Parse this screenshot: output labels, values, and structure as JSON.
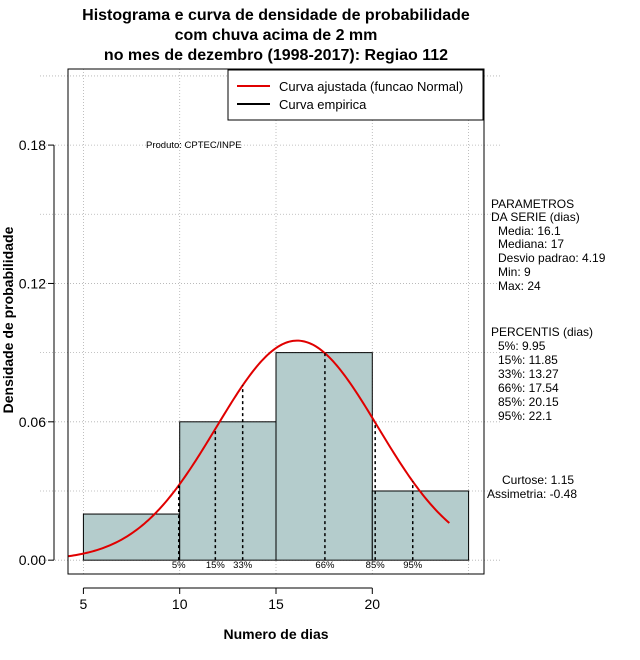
{
  "chart_data": {
    "type": "histogram",
    "title": [
      "Histograma e curva de densidade de probabilidade",
      "com chuva acima de 2 mm",
      "no mes de dezembro (1998-2017): Regiao 112"
    ],
    "xlabel": "Numero de dias",
    "ylabel": "Densidade de probabilidade",
    "xlim": [
      4.2,
      25.8
    ],
    "ylim": [
      -0.006,
      0.213
    ],
    "x_ticks": [
      5,
      10,
      15,
      20
    ],
    "y_ticks": [
      0.0,
      0.06,
      0.12,
      0.18
    ],
    "y_tick_labels": [
      "0.00",
      "0.06",
      "0.12",
      "0.18"
    ],
    "bins": [
      {
        "start": 5,
        "end": 10,
        "density": 0.02
      },
      {
        "start": 10,
        "end": 15,
        "density": 0.06
      },
      {
        "start": 15,
        "end": 20,
        "density": 0.09
      },
      {
        "start": 20,
        "end": 25,
        "density": 0.03
      }
    ],
    "bar_color": "#b4cccc",
    "curve_color": "#e00000",
    "normal_curve": {
      "mean": 16.1,
      "sd": 4.19,
      "x_range": [
        4.2,
        24
      ]
    },
    "percentiles": [
      {
        "label": "5%",
        "x": 9.95
      },
      {
        "label": "15%",
        "x": 11.85
      },
      {
        "label": "33%",
        "x": 13.27
      },
      {
        "label": "66%",
        "x": 17.54
      },
      {
        "label": "85%",
        "x": 20.15
      },
      {
        "label": "95%",
        "x": 22.1
      }
    ],
    "legend": {
      "position": "top-right",
      "items": [
        {
          "label": "Curva ajustada (funcao Normal)",
          "color": "#e00000"
        },
        {
          "label": "Curva empirica",
          "color": "#000000"
        }
      ]
    },
    "grid": true
  },
  "annotations": {
    "produto": "Produto: CPTEC/INPE",
    "parametros_title": [
      "PARAMETROS",
      "DA SERIE (dias)"
    ],
    "parametros": [
      "Media: 16.1",
      "Mediana: 17",
      "Desvio padrao: 4.19",
      "Min: 9",
      "Max: 24"
    ],
    "percentis_title": "PERCENTIS (dias)",
    "percentis": [
      "5%: 9.95",
      "15%: 11.85",
      "33%: 13.27",
      "66%: 17.54",
      "85%: 20.15",
      "95%: 22.1"
    ],
    "curtose": "Curtose: 1.15",
    "assimetria": "Assimetria: -0.48"
  }
}
